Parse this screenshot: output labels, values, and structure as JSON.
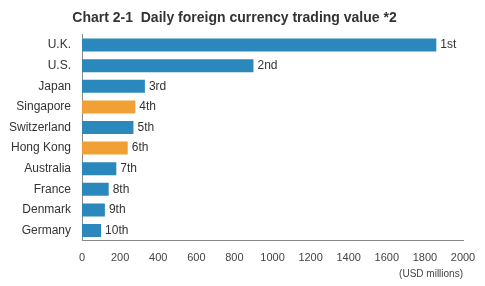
{
  "chart_data": {
    "type": "bar",
    "title": "Chart 2-1  Daily foreign currency trading value *2",
    "x_label": "(USD millions)",
    "orientation": "horizontal",
    "categories": [
      "U.K.",
      "U.S.",
      "Japan",
      "Singapore",
      "Switzerland",
      "Hong Kong",
      "Australia",
      "France",
      "Denmark",
      "Germany"
    ],
    "values": [
      1860,
      900,
      330,
      280,
      270,
      240,
      180,
      140,
      120,
      100
    ],
    "colors": [
      "#2a88bd",
      "#2a88bd",
      "#2a88bd",
      "#f0a035",
      "#2a88bd",
      "#f0a035",
      "#2a88bd",
      "#2a88bd",
      "#2a88bd",
      "#2a88bd"
    ],
    "annotations": [
      {
        "category": "U.K.",
        "text": "1st"
      },
      {
        "category": "U.S.",
        "text": "2nd"
      },
      {
        "category": "Japan",
        "text": "3rd"
      },
      {
        "category": "Singapore",
        "text": "4th"
      },
      {
        "category": "Switzerland",
        "text": "5th"
      },
      {
        "category": "Hong Kong",
        "text": "6th"
      },
      {
        "category": "Australia",
        "text": "7th"
      },
      {
        "category": "France",
        "text": "8th"
      },
      {
        "category": "Denmark",
        "text": "9th"
      },
      {
        "category": "Germany",
        "text": "10th"
      }
    ],
    "xlim": [
      0,
      2000
    ],
    "xticks": [
      0,
      200,
      400,
      600,
      800,
      1000,
      1200,
      1400,
      1600,
      1800,
      2000
    ],
    "grid": false
  }
}
